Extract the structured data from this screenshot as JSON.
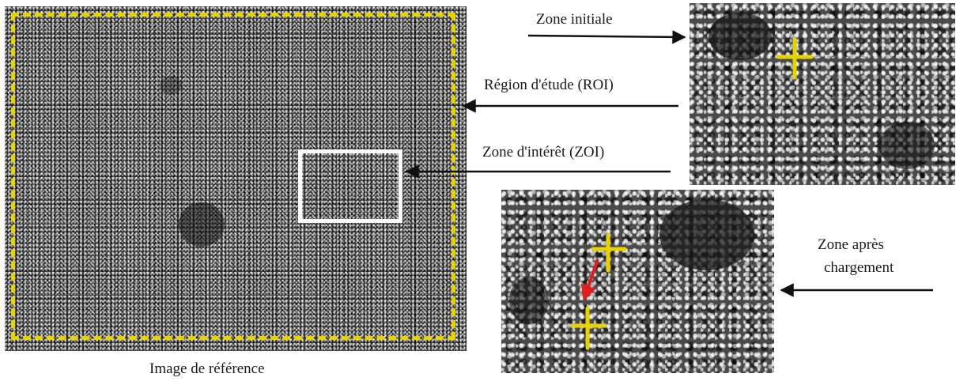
{
  "labels": {
    "reference_image": "Image de référence",
    "initial_zone": "Zone initiale",
    "roi": "Région d'étude (ROI)",
    "zoi": "Zone d'intérêt (ZOI)",
    "after_loading_line1": "Zone après",
    "after_loading_line2": "chargement"
  },
  "colors": {
    "roi_border": "#e6d200",
    "zoi_border": "#ffffff",
    "marker_cross": "#e6d200",
    "displacement_arrow": "#e02020"
  }
}
